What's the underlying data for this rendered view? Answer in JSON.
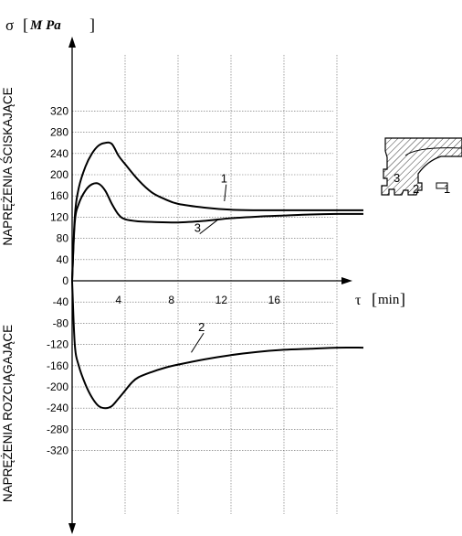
{
  "chart_data": {
    "type": "line",
    "xlabel": {
      "symbol": "τ",
      "unit": "min"
    },
    "ylabel": {
      "symbol": "σ",
      "unit": "M Pa"
    },
    "xlim": [
      0,
      22
    ],
    "ylim": [
      -360,
      360
    ],
    "x_ticks": [
      4,
      8,
      12,
      16
    ],
    "y_ticks": [
      320,
      280,
      240,
      200,
      160,
      120,
      80,
      40,
      0,
      -40,
      -80,
      -120,
      -160,
      -200,
      -240,
      -280,
      -320
    ],
    "grid": true,
    "region_labels": {
      "top": "NAPRĘŻENIA ŚCISKAJĄCE",
      "bottom": "NAPRĘŻENIA ROZCIĄGAJĄCE"
    },
    "series": [
      {
        "name": "1",
        "x": [
          0,
          0.2,
          0.5,
          1.0,
          1.5,
          2.0,
          2.5,
          3.0,
          3.5,
          4.0,
          5.0,
          6.0,
          7.0,
          8.0,
          10.0,
          12.0,
          14.0,
          16.0,
          18.0,
          20.0,
          22.0
        ],
        "y": [
          0,
          120,
          175,
          215,
          240,
          255,
          260,
          258,
          236,
          220,
          190,
          167,
          154,
          145,
          138,
          134,
          133,
          133,
          133,
          133,
          133
        ]
      },
      {
        "name": "2",
        "x": [
          0,
          0.2,
          0.5,
          1.0,
          1.5,
          2.0,
          2.5,
          3.0,
          3.5,
          4.0,
          4.5,
          5.0,
          6.0,
          7.0,
          8.0,
          10.0,
          12.0,
          14.0,
          16.0,
          18.0,
          20.0,
          22.0
        ],
        "y": [
          0,
          -120,
          -160,
          -195,
          -220,
          -236,
          -240,
          -236,
          -222,
          -207,
          -192,
          -182,
          -172,
          -164,
          -158,
          -148,
          -140,
          -134,
          -130,
          -128,
          -126,
          -126
        ]
      },
      {
        "name": "3",
        "x": [
          0,
          0.2,
          0.5,
          1.0,
          1.5,
          2.0,
          2.5,
          3.0,
          3.5,
          4.0,
          5.0,
          6.0,
          8.0,
          10.0,
          12.0,
          14.0,
          16.0,
          18.0,
          20.0,
          22.0
        ],
        "y": [
          0,
          110,
          145,
          170,
          182,
          183,
          170,
          145,
          125,
          116,
          112,
          111,
          110,
          113,
          118,
          121,
          123,
          125,
          126,
          126
        ]
      }
    ],
    "curve_labels": [
      {
        "text": "1",
        "x": 11.5,
        "y": 185,
        "target_x": 11.5,
        "target_y": 150
      },
      {
        "text": "3",
        "x": 9.5,
        "y": 92,
        "target_x": 11.0,
        "target_y": 115
      },
      {
        "text": "2",
        "x": 9.8,
        "y": -95,
        "target_x": 9.0,
        "target_y": -135
      }
    ],
    "inset_labels": [
      "3",
      "2",
      "1"
    ]
  }
}
